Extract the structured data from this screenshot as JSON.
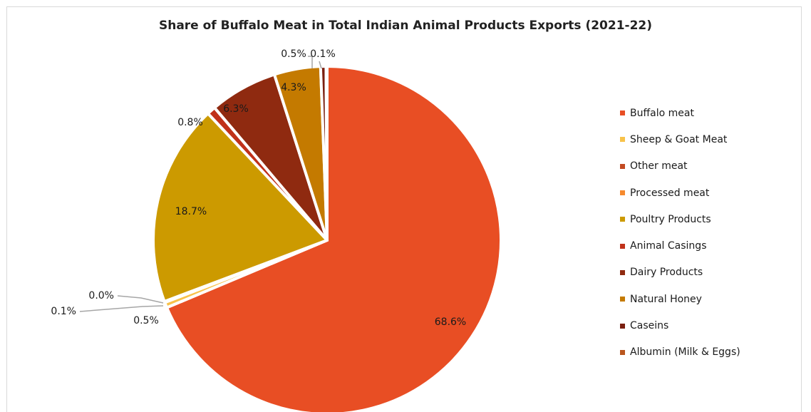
{
  "chart_data": {
    "type": "pie",
    "title": "Share of Buffalo Meat in Total Indian Animal Products Exports (2021-22)",
    "categories": [
      "Buffalo meat",
      "Sheep & Goat Meat",
      "Other meat",
      "Processed meat",
      "Poultry Products",
      "Animal Casings",
      "Dairy Products",
      "Natural Honey",
      "Caseins",
      "Albumin (Milk & Eggs)"
    ],
    "values": [
      68.6,
      0.5,
      0.1,
      0.0,
      18.7,
      0.8,
      6.3,
      4.3,
      0.5,
      0.1
    ],
    "labels": [
      "68.6%",
      "0.5%",
      "0.1%",
      "0.0%",
      "18.7%",
      "0.8%",
      "6.3%",
      "4.3%",
      "0.5%",
      "0.1%"
    ],
    "colors": [
      "#e84e24",
      "#f8c24a",
      "#c24a22",
      "#f68a2e",
      "#cc9a00",
      "#c0311a",
      "#8f2a10",
      "#c47a00",
      "#7a1f10",
      "#b9561e"
    ],
    "legend": "right",
    "start_angle": "12 o'clock, clockwise"
  }
}
